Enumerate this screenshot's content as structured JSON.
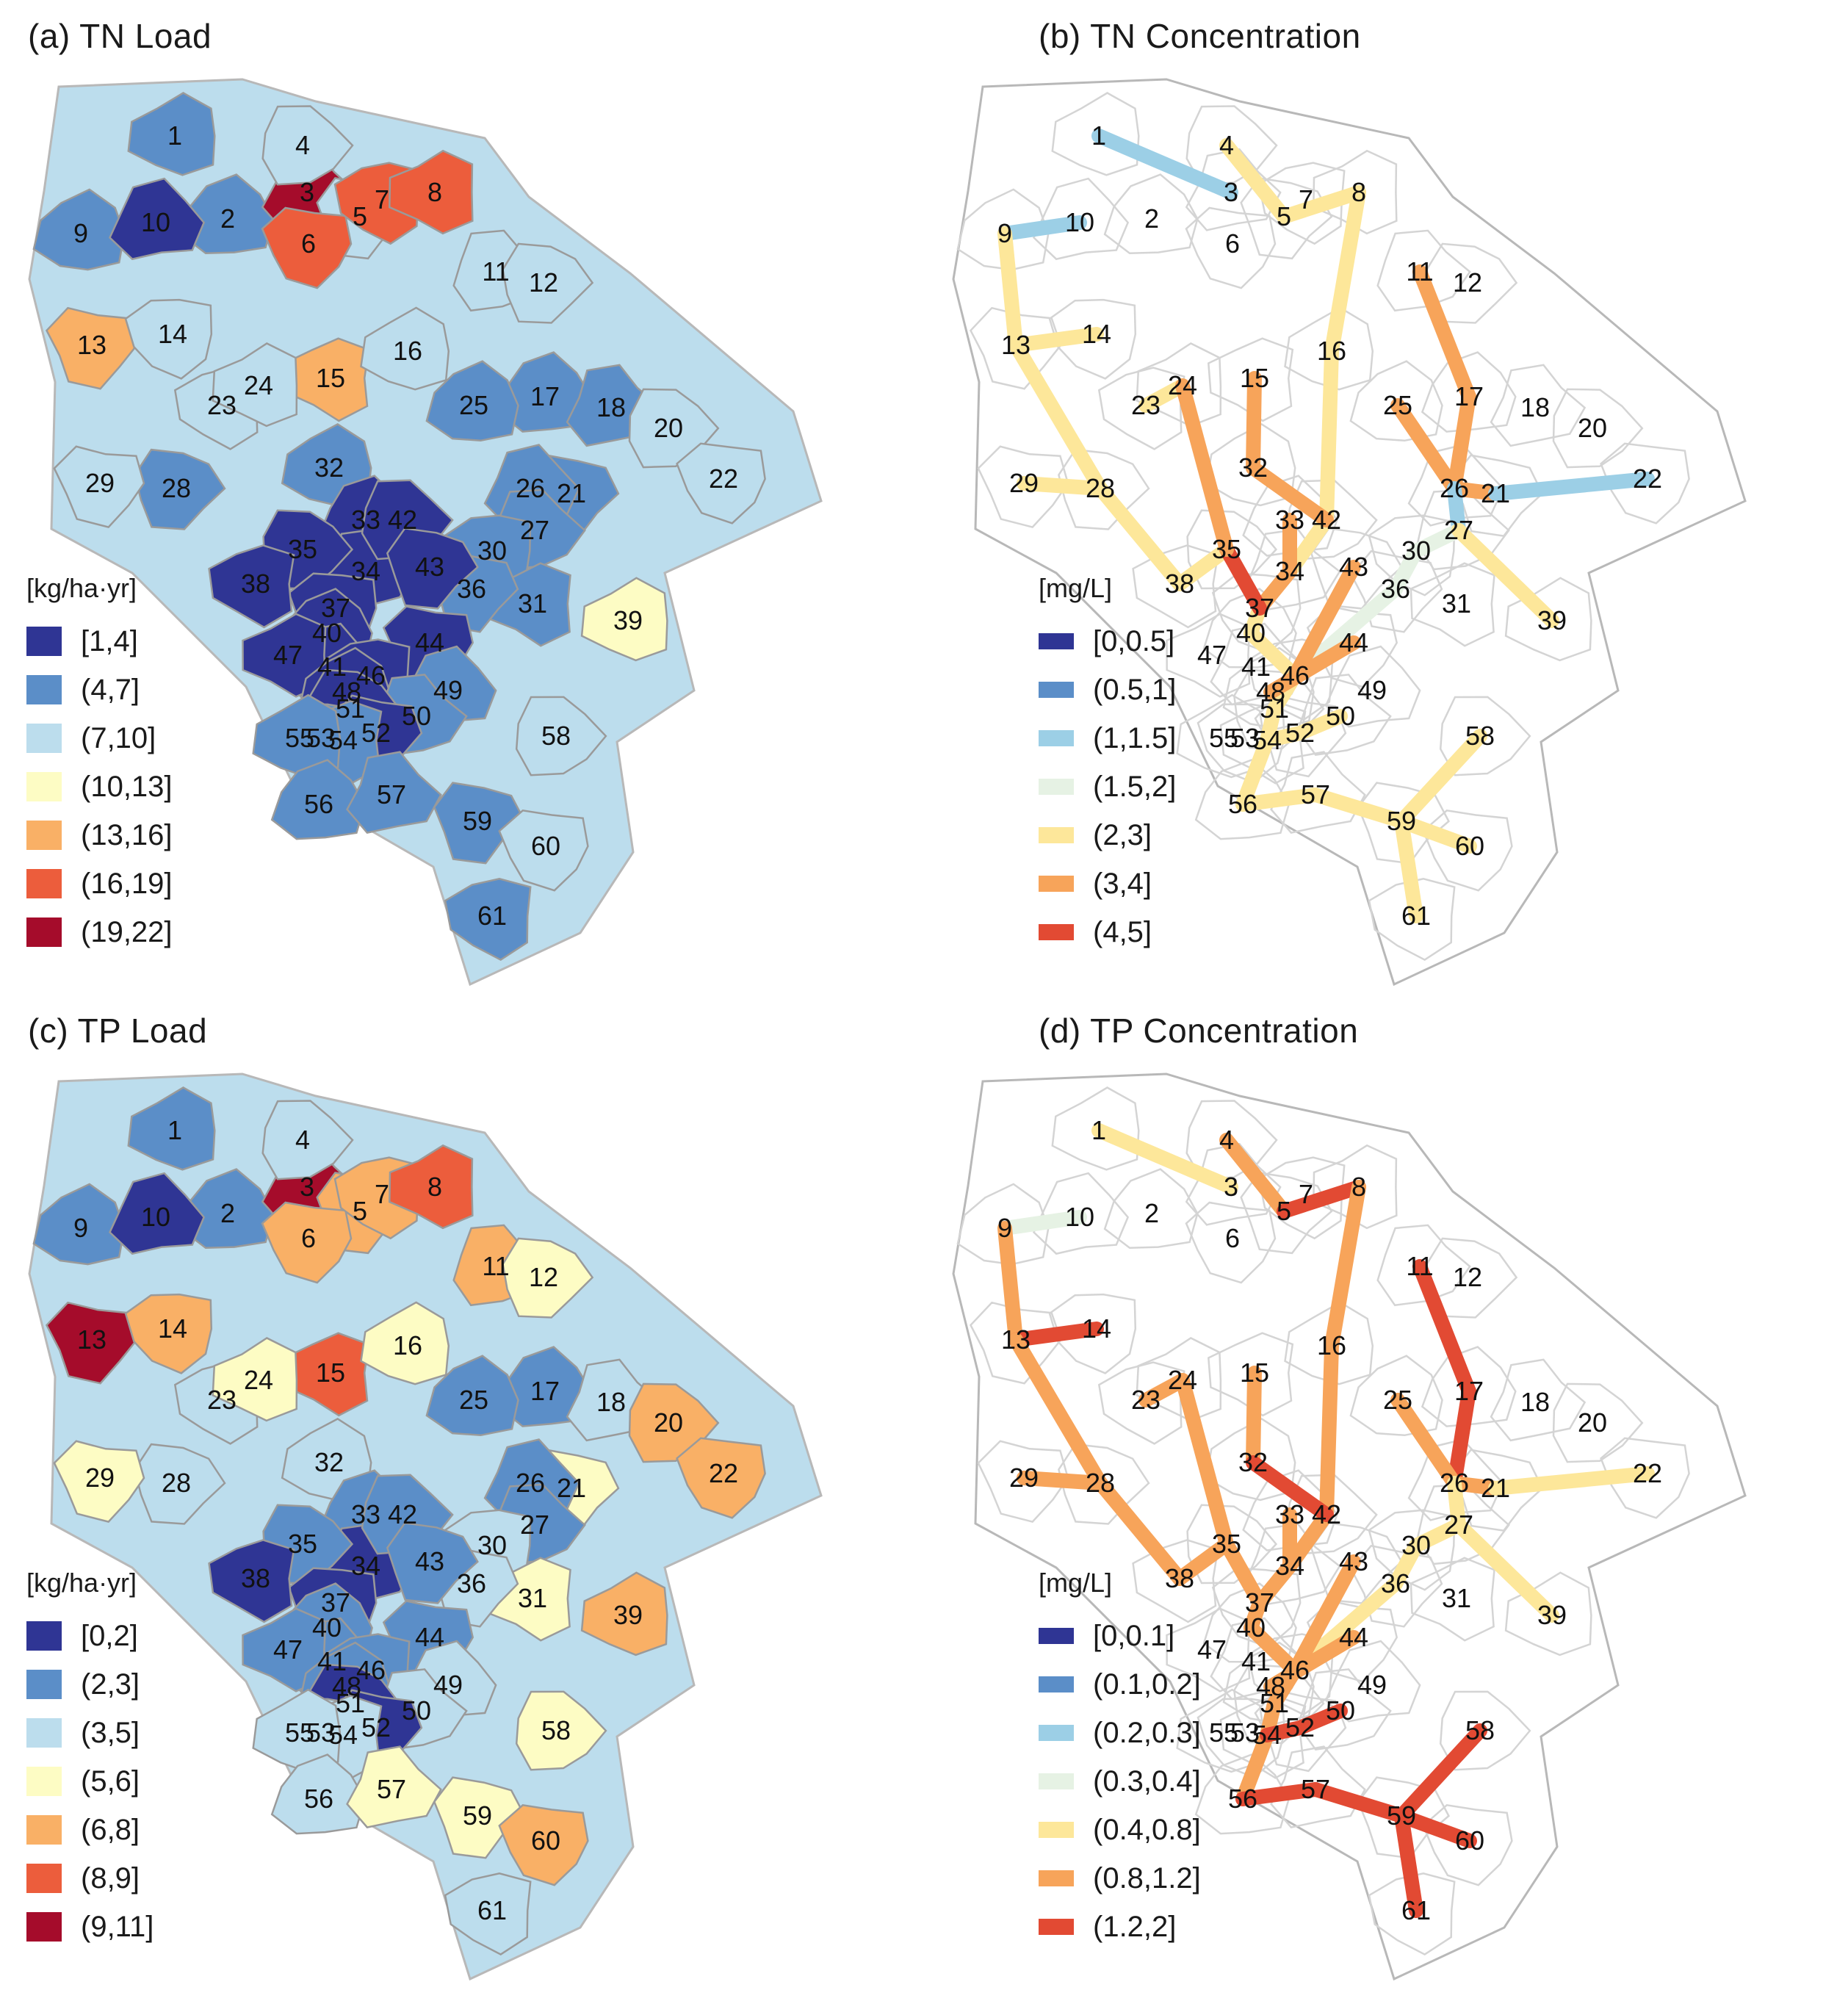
{
  "panels": [
    {
      "title": "(a) TN Load",
      "kind": "polygon",
      "legend": {
        "unit": "[kg/ha·yr]",
        "classes": [
          {
            "label": "[1,4]",
            "color": "#2f3594"
          },
          {
            "label": "(4,7]",
            "color": "#5b8ec8"
          },
          {
            "label": "(7,10]",
            "color": "#bcdded"
          },
          {
            "label": "(10,13]",
            "color": "#fdfcc4"
          },
          {
            "label": "(13,16]",
            "color": "#f9b066"
          },
          {
            "label": "(16,19]",
            "color": "#ec5d3c"
          },
          {
            "label": "(19,22]",
            "color": "#a50c2b"
          }
        ]
      },
      "labels": [
        "1",
        "2",
        "3",
        "4",
        "5",
        "6",
        "7",
        "8",
        "9",
        "10",
        "11",
        "12",
        "13",
        "14",
        "15",
        "16",
        "17",
        "18",
        "20",
        "21",
        "22",
        "23",
        "24",
        "25",
        "26",
        "27",
        "28",
        "29",
        "30",
        "31",
        "32",
        "33",
        "34",
        "35",
        "36",
        "37",
        "38",
        "39",
        "40",
        "41",
        "42",
        "43",
        "44",
        "46",
        "47",
        "48",
        "49",
        "50",
        "51",
        "52",
        "53",
        "54",
        "55",
        "56",
        "57",
        "58",
        "59",
        "60",
        "61"
      ]
    },
    {
      "title": "(b) TN Concentration",
      "kind": "river",
      "legend": {
        "unit": "[mg/L]",
        "classes": [
          {
            "label": "[0,0.5]",
            "color": "#2f3594"
          },
          {
            "label": "(0.5,1]",
            "color": "#5b8ec8"
          },
          {
            "label": "(1,1.5]",
            "color": "#9ccfe6"
          },
          {
            "label": "(1.5,2]",
            "color": "#e6f2e4"
          },
          {
            "label": "(2,3]",
            "color": "#fde79a"
          },
          {
            "label": "(3,4]",
            "color": "#f7a45a"
          },
          {
            "label": "(4,5]",
            "color": "#e24a33"
          }
        ]
      },
      "labels": [
        "1",
        "2",
        "3",
        "4",
        "5",
        "6",
        "7",
        "8",
        "9",
        "10",
        "11",
        "12",
        "13",
        "14",
        "15",
        "16",
        "17",
        "18",
        "20",
        "21",
        "22",
        "23",
        "24",
        "25",
        "26",
        "27",
        "28",
        "29",
        "30",
        "31",
        "32",
        "33",
        "34",
        "35",
        "36",
        "37",
        "38",
        "39",
        "40",
        "41",
        "42",
        "43",
        "44",
        "46",
        "47",
        "48",
        "49",
        "50",
        "51",
        "52",
        "53",
        "54",
        "55",
        "56",
        "57",
        "58",
        "59",
        "60",
        "61"
      ]
    },
    {
      "title": "(c) TP Load",
      "kind": "polygon",
      "legend": {
        "unit": "[kg/ha·yr]",
        "classes": [
          {
            "label": "[0,2]",
            "color": "#2f3594"
          },
          {
            "label": "(2,3]",
            "color": "#5b8ec8"
          },
          {
            "label": "(3,5]",
            "color": "#bcdded"
          },
          {
            "label": "(5,6]",
            "color": "#fdfcc4"
          },
          {
            "label": "(6,8]",
            "color": "#f9b066"
          },
          {
            "label": "(8,9]",
            "color": "#ec5d3c"
          },
          {
            "label": "(9,11]",
            "color": "#a50c2b"
          }
        ]
      },
      "labels": [
        "1",
        "2",
        "3",
        "4",
        "5",
        "6",
        "7",
        "8",
        "9",
        "10",
        "11",
        "12",
        "13",
        "14",
        "15",
        "16",
        "17",
        "18",
        "20",
        "21",
        "22",
        "23",
        "24",
        "25",
        "26",
        "27",
        "28",
        "29",
        "30",
        "31",
        "32",
        "33",
        "34",
        "35",
        "36",
        "37",
        "38",
        "39",
        "40",
        "41",
        "42",
        "43",
        "44",
        "46",
        "47",
        "48",
        "49",
        "50",
        "51",
        "52",
        "53",
        "54",
        "55",
        "56",
        "57",
        "58",
        "59",
        "60",
        "61"
      ]
    },
    {
      "title": "(d) TP Concentration",
      "kind": "river",
      "legend": {
        "unit": "[mg/L]",
        "classes": [
          {
            "label": "[0,0.1]",
            "color": "#2f3594"
          },
          {
            "label": "(0.1,0.2]",
            "color": "#5b8ec8"
          },
          {
            "label": "(0.2,0.3]",
            "color": "#9ccfe6"
          },
          {
            "label": "(0.3,0.4]",
            "color": "#e6f2e4"
          },
          {
            "label": "(0.4,0.8]",
            "color": "#fde79a"
          },
          {
            "label": "(0.8,1.2]",
            "color": "#f7a45a"
          },
          {
            "label": "(1.2,2]",
            "color": "#e24a33"
          }
        ]
      },
      "labels": [
        "1",
        "2",
        "3",
        "4",
        "5",
        "6",
        "7",
        "8",
        "9",
        "10",
        "11",
        "12",
        "13",
        "14",
        "15",
        "16",
        "17",
        "18",
        "20",
        "21",
        "22",
        "23",
        "24",
        "25",
        "26",
        "27",
        "28",
        "29",
        "30",
        "31",
        "32",
        "33",
        "34",
        "35",
        "36",
        "37",
        "38",
        "39",
        "40",
        "41",
        "42",
        "43",
        "44",
        "46",
        "47",
        "48",
        "49",
        "50",
        "51",
        "52",
        "53",
        "54",
        "55",
        "56",
        "57",
        "58",
        "59",
        "60",
        "61"
      ]
    }
  ]
}
